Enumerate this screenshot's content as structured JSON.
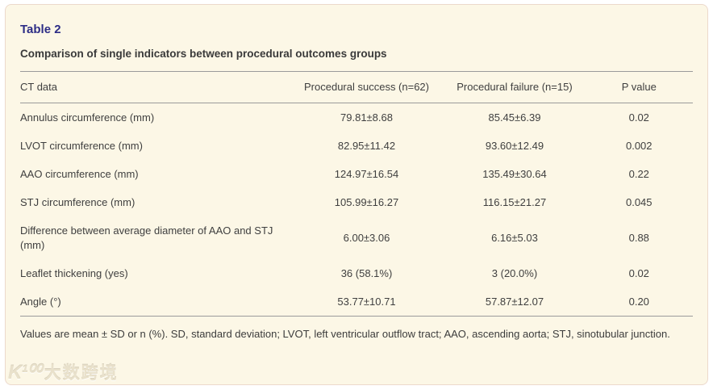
{
  "header": {
    "table_label": "Table 2",
    "caption": "Comparison of single indicators between procedural outcomes groups"
  },
  "table": {
    "columns": [
      "CT data",
      "Procedural success (n=62)",
      "Procedural failure (n=15)",
      "P value"
    ],
    "rows": [
      {
        "label": "Annulus circumference (mm)",
        "success": "79.81±8.68",
        "failure": "85.45±6.39",
        "p_value": "0.02"
      },
      {
        "label": "LVOT circumference (mm)",
        "success": "82.95±11.42",
        "failure": "93.60±12.49",
        "p_value": "0.002"
      },
      {
        "label": "AAO circumference (mm)",
        "success": "124.97±16.54",
        "failure": "135.49±30.64",
        "p_value": "0.22"
      },
      {
        "label": "STJ circumference (mm)",
        "success": "105.99±16.27",
        "failure": "116.15±21.27",
        "p_value": "0.045"
      },
      {
        "label": "Difference between average diameter of AAO and STJ (mm)",
        "success": "6.00±3.06",
        "failure": "6.16±5.03",
        "p_value": "0.88"
      },
      {
        "label": "Leaflet thickening (yes)",
        "success": "36 (58.1%)",
        "failure": "3 (20.0%)",
        "p_value": "0.02"
      },
      {
        "label": "Angle (°)",
        "success": "53.77±10.71",
        "failure": "57.87±12.07",
        "p_value": "0.20"
      }
    ]
  },
  "footnote": "Values are mean ± SD or n (%). SD, standard deviation; LVOT, left ventricular outflow tract; AAO, ascending aorta; STJ, sinotubular junction.",
  "watermark": {
    "logo": "K¹⁰⁰",
    "text": "大数跨境"
  },
  "colors": {
    "panel_background": "#fcf7e6",
    "panel_border": "#ecd9cc",
    "title": "#2d2d86",
    "body_text": "#3f3f3f",
    "rule": "#9b9b9b"
  }
}
